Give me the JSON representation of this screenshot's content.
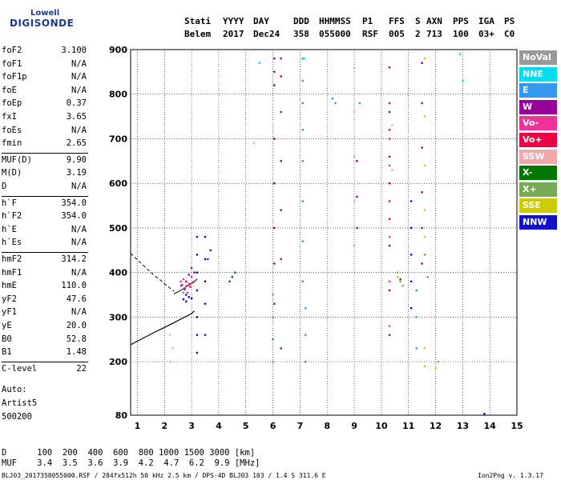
{
  "logo": {
    "line1": "Lowell",
    "line2": "DIGISONDE"
  },
  "header": {
    "row1": [
      "Stati",
      "YYYY",
      "DAY",
      "DDD",
      "HHMMSS",
      "P1",
      "FFS",
      "S",
      "AXN",
      "PPS",
      "IGA",
      "PS"
    ],
    "row2": [
      "Belem",
      "2017",
      "Dec24",
      "358",
      "055000",
      "RSF",
      "005",
      "2",
      "713",
      "100",
      "03+",
      "C0"
    ]
  },
  "params": [
    {
      "name": "foF2",
      "value": "3.100"
    },
    {
      "name": "foF1",
      "value": "N/A"
    },
    {
      "name": "foF1p",
      "value": "N/A"
    },
    {
      "name": "foE",
      "value": "N/A"
    },
    {
      "name": "foEp",
      "value": "0.37"
    },
    {
      "name": "fxI",
      "value": "3.65"
    },
    {
      "name": "foEs",
      "value": "N/A"
    },
    {
      "name": "fmin",
      "value": "2.65"
    },
    {
      "name": "MUF(D)",
      "value": "9.90"
    },
    {
      "name": "M(D)",
      "value": "3.19"
    },
    {
      "name": "D",
      "value": "N/A"
    },
    {
      "name": "h`F",
      "value": "354.0"
    },
    {
      "name": "h`F2",
      "value": "354.0"
    },
    {
      "name": "h`E",
      "value": "N/A"
    },
    {
      "name": "h`Es",
      "value": "N/A"
    },
    {
      "name": "hmF2",
      "value": "314.2"
    },
    {
      "name": "hmF1",
      "value": "N/A"
    },
    {
      "name": "hmE",
      "value": "110.0"
    },
    {
      "name": "yF2",
      "value": "47.6"
    },
    {
      "name": "yF1",
      "value": "N/A"
    },
    {
      "name": "yE",
      "value": "20.0"
    },
    {
      "name": "B0",
      "value": "52.8"
    },
    {
      "name": "B1",
      "value": "1.48"
    },
    {
      "name": "C-level",
      "value": "22"
    }
  ],
  "auto": {
    "label": "Auto:",
    "artist": "Artist5",
    "version": "500200"
  },
  "legend": [
    {
      "label": "NoVal",
      "color": "#999999"
    },
    {
      "label": "NNE",
      "color": "#00ddee"
    },
    {
      "label": "E",
      "color": "#3399ee"
    },
    {
      "label": "W",
      "color": "#990099"
    },
    {
      "label": "Vo-",
      "color": "#ee3399"
    },
    {
      "label": "Vo+",
      "color": "#ee0044"
    },
    {
      "label": "SSW",
      "color": "#f0a8a8"
    },
    {
      "label": "X-",
      "color": "#007700"
    },
    {
      "label": "X+",
      "color": "#77aa55"
    },
    {
      "label": "SSE",
      "color": "#cccc00"
    },
    {
      "label": "NNW",
      "color": "#1111cc"
    }
  ],
  "footer": {
    "d_label": "D",
    "d_values": [
      "100",
      "200",
      "400",
      "600",
      "800",
      "1000",
      "1500",
      "3000"
    ],
    "d_unit": "[km]",
    "muf_label": "MUF",
    "muf_values": [
      "3.4",
      "3.5",
      "3.6",
      "3.9",
      "4.2",
      "4.7",
      "6.2",
      "9.9"
    ],
    "muf_unit": "[MHz]",
    "info": "BLJ03_2017358055000.RSF / 284fx512h 50 kHz 2.5 km / DPS-4D BLJ03 103 / 1.4 S 311.6 E",
    "program": "Ion2Png v. 1.3.17"
  },
  "chart_data": {
    "type": "scatter",
    "xlim": [
      0.75,
      15
    ],
    "ylim": [
      80,
      900
    ],
    "xticks": [
      1,
      2,
      3,
      4,
      5,
      6,
      7,
      8,
      9,
      10,
      11,
      12,
      13,
      14,
      15
    ],
    "yticks": [
      80,
      200,
      300,
      400,
      500,
      600,
      700,
      800,
      900
    ],
    "grid": true,
    "trace_x": [
      2.35,
      2.6,
      2.9,
      3.1,
      3.2
    ],
    "trace_y": [
      352,
      360,
      372,
      380,
      385
    ],
    "profile_x": [
      0.75,
      1.5,
      2.3,
      3.0,
      3.1
    ],
    "profile_y": [
      238,
      262,
      286,
      308,
      314
    ],
    "profile2_x": [
      0.75,
      1.5,
      2.0,
      2.35
    ],
    "profile2_y": [
      443,
      400,
      375,
      358
    ],
    "points": [
      {
        "color": "#990099",
        "x": [
          6.05,
          6.05,
          6.05,
          6.05,
          6.05,
          6.05,
          6.05,
          6.05,
          6.3,
          6.3,
          6.3,
          6.3,
          6.3,
          6.3,
          6.3,
          10.3,
          10.3,
          10.3,
          10.3,
          10.3,
          10.3,
          10.3,
          11.5,
          11.5,
          11.5,
          11.5,
          11.5,
          11.5,
          2.8,
          2.9,
          3.0,
          3.1,
          3.6,
          3.7,
          9.1,
          9.1,
          9.1
        ],
        "y": [
          880,
          850,
          820,
          700,
          600,
          500,
          420,
          330,
          880,
          840,
          760,
          650,
          540,
          430,
          230,
          860,
          760,
          660,
          560,
          460,
          360,
          260,
          870,
          780,
          680,
          580,
          500,
          420,
          380,
          395,
          410,
          400,
          430,
          450,
          650,
          570,
          500
        ]
      },
      {
        "color": "#3399ee",
        "x": [
          7.1,
          7.1,
          7.1,
          7.1,
          7.1,
          7.1,
          7.1,
          7.1,
          7.2,
          7.2,
          7.2,
          6.0,
          6.0,
          6.0,
          6.0,
          11.3,
          11.3,
          11.3,
          8.2,
          8.3,
          9.2,
          2.6,
          2.7
        ],
        "y": [
          880,
          830,
          780,
          720,
          650,
          560,
          470,
          380,
          320,
          260,
          200,
          350,
          300,
          250,
          200,
          360,
          300,
          230,
          790,
          780,
          780,
          370,
          355
        ]
      },
      {
        "color": "#ee3399",
        "x": [
          10.3,
          10.3,
          10.3,
          10.3,
          10.3,
          10.3,
          2.6,
          2.7,
          2.8,
          2.9,
          3.0,
          2.75,
          2.85
        ],
        "y": [
          700,
          640,
          560,
          480,
          380,
          280,
          380,
          385,
          370,
          375,
          390,
          365,
          355
        ]
      },
      {
        "color": "#ee0044",
        "x": [
          10.3,
          10.3,
          10.3,
          10.3,
          2.65,
          2.75,
          2.95,
          3.05
        ],
        "y": [
          780,
          720,
          600,
          520,
          372,
          362,
          368,
          378
        ]
      },
      {
        "color": "#f0a8a8",
        "x": [
          9.0,
          9.0,
          9.0,
          9.0,
          9.0,
          2.2,
          2.2,
          2.3,
          10.4,
          10.4,
          5.3
        ],
        "y": [
          860,
          760,
          660,
          560,
          460,
          260,
          200,
          230,
          730,
          630,
          690
        ]
      },
      {
        "color": "#1111cc",
        "x": [
          3.2,
          3.2,
          3.2,
          3.2,
          3.2,
          3.2,
          3.2,
          3.5,
          3.5,
          3.5,
          3.5,
          3.5,
          2.8,
          2.9,
          11.1,
          11.1,
          11.1,
          11.1,
          11.1,
          13.8,
          2.7,
          2.8,
          3.0
        ],
        "y": [
          480,
          440,
          400,
          360,
          300,
          260,
          220,
          480,
          430,
          380,
          330,
          260,
          350,
          345,
          560,
          500,
          440,
          380,
          320,
          83,
          340,
          335,
          342
        ]
      },
      {
        "color": "#cccc00",
        "x": [
          11.6,
          11.6,
          11.6,
          11.6,
          11.6,
          11.6,
          11.6,
          11.6,
          10.6,
          12.0
        ],
        "y": [
          880,
          750,
          640,
          540,
          480,
          440,
          230,
          190,
          390,
          185
        ]
      },
      {
        "color": "#77aa55",
        "x": [
          10.6,
          10.7,
          10.8,
          11.6,
          11.7,
          12.1
        ],
        "y": [
          400,
          380,
          370,
          440,
          390,
          200
        ]
      },
      {
        "color": "#007700",
        "x": [
          4.4,
          4.5,
          10.7,
          4.6
        ],
        "y": [
          380,
          390,
          385,
          400
        ]
      },
      {
        "color": "#00ddee",
        "x": [
          12.9,
          7.15,
          5.5,
          13.0
        ],
        "y": [
          890,
          880,
          870,
          830
        ]
      }
    ]
  }
}
